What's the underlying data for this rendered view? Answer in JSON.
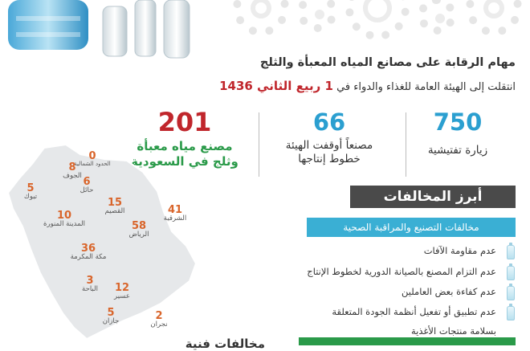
{
  "header": {
    "title": "مهام الرقابة على مصانع المياه المعبأة والثلج",
    "subtitle_text": "انتقلت إلى الهيئة العامة للغذاء والدواء في",
    "subtitle_date": "1 ربيع الثاني 1436"
  },
  "stats": [
    {
      "number": "750",
      "label": "زيارة تفتيشية",
      "color": "#2b9fd0"
    },
    {
      "number": "66",
      "label": "مصنعاً أوقفت الهيئة خطوط إنتاجها",
      "color": "#2b9fd0"
    },
    {
      "number": "201",
      "label_line1": "مصنع مياه معبأة",
      "label_line2": "وثلج في السعودية",
      "color": "#c0262c",
      "label_color": "#2a9a49"
    }
  ],
  "map": {
    "regions": [
      {
        "count": "0",
        "name": "الحدود الشمالية"
      },
      {
        "count": "8",
        "name": "الجوف"
      },
      {
        "count": "5",
        "name": "تبوك"
      },
      {
        "count": "6",
        "name": "حائل"
      },
      {
        "count": "10",
        "name": "المدينة المنورة"
      },
      {
        "count": "15",
        "name": "القصيم"
      },
      {
        "count": "58",
        "name": "الرياض"
      },
      {
        "count": "41",
        "name": "الشرقية"
      },
      {
        "count": "36",
        "name": "مكة المكرمة"
      },
      {
        "count": "3",
        "name": "الباحة"
      },
      {
        "count": "12",
        "name": "عسير"
      },
      {
        "count": "5",
        "name": "جازان"
      },
      {
        "count": "2",
        "name": "نجران"
      }
    ],
    "land_color": "#e6e8ea",
    "count_color": "#d9652b"
  },
  "violations": {
    "header": "أبرز المخالفات",
    "category": "مخالفات التصنيع والمراقبة الصحية",
    "items": [
      "عدم مقاومة الآفات",
      "عدم التزام المصنع بالصيانة الدورية لخطوط الإنتاج",
      "عدم كفاءة بعض العاملين",
      "عدم تطبيق أو تفعيل أنظمة الجودة المتعلقة",
      "بسلامة منتجات الأغذية"
    ],
    "bottom_partial": "مخالفات فنية"
  }
}
